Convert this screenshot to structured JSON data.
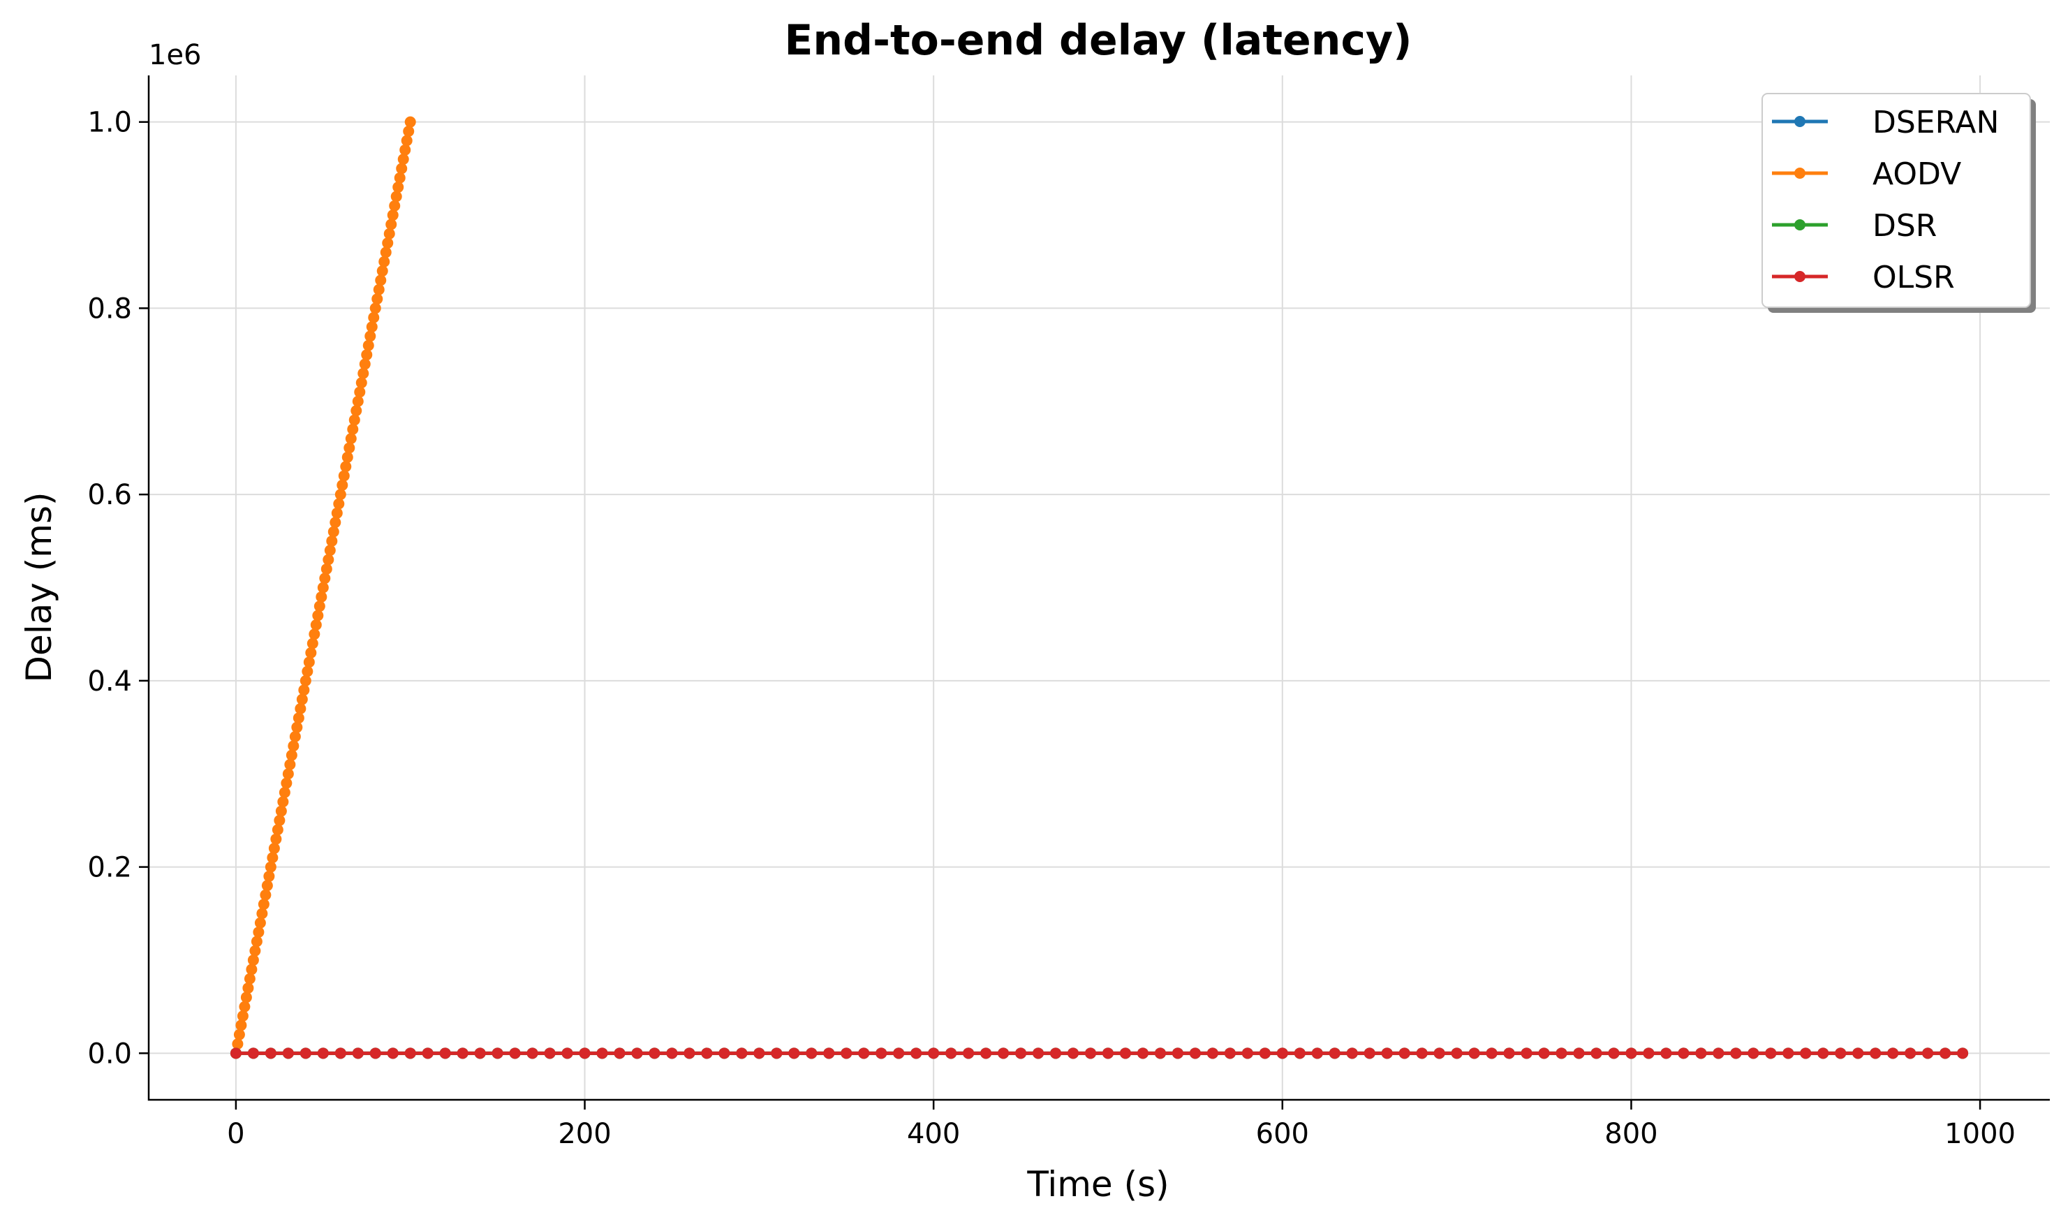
{
  "chart_data": {
    "type": "line",
    "title": "End-to-end delay (latency)",
    "xlabel": "Time (s)",
    "ylabel": "Delay (ms)",
    "y_offset_label": "1e6",
    "xlim": [
      -50,
      1040
    ],
    "ylim": [
      -0.05,
      1.05
    ],
    "x_ticks": [
      0,
      200,
      400,
      600,
      800,
      1000
    ],
    "x_tick_labels": [
      "0",
      "200",
      "400",
      "600",
      "800",
      "1000"
    ],
    "y_ticks": [
      0.0,
      0.2,
      0.4,
      0.6,
      0.8,
      1.0
    ],
    "y_tick_labels": [
      "0.0",
      "0.2",
      "0.4",
      "0.6",
      "0.8",
      "1.0"
    ],
    "grid": true,
    "legend_position": "top-right",
    "series": [
      {
        "name": "DSERAN",
        "color": "#1f77b4",
        "x_start": 0,
        "x_end": 990,
        "x_step": 10,
        "y_start": 0,
        "y_end": 0
      },
      {
        "name": "AODV",
        "color": "#ff7f0e",
        "x_start": 0,
        "x_end": 100,
        "x_step": 1,
        "y_start": 0,
        "y_end": 1.0
      },
      {
        "name": "DSR",
        "color": "#2ca02c",
        "x_start": 0,
        "x_end": 990,
        "x_step": 10,
        "y_start": 0,
        "y_end": 0
      },
      {
        "name": "OLSR",
        "color": "#d62728",
        "x_start": 0,
        "x_end": 990,
        "x_step": 10,
        "y_start": 0,
        "y_end": 0
      }
    ]
  }
}
